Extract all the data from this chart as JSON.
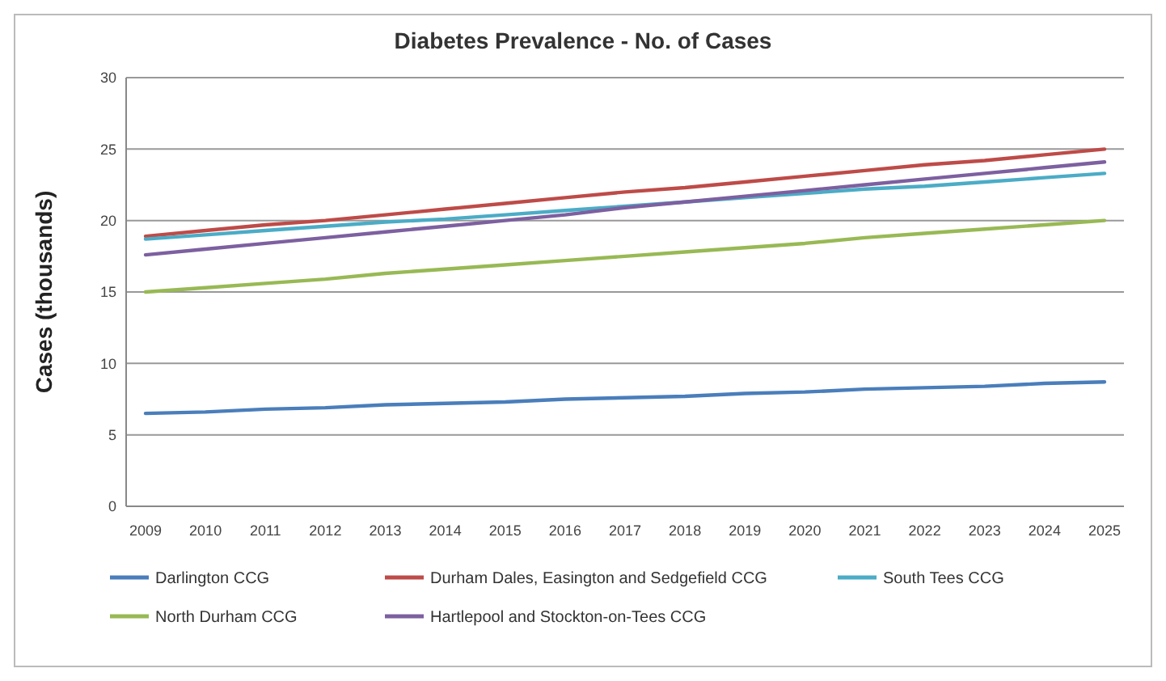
{
  "chart_data": {
    "type": "line",
    "title": "Diabetes Prevalence - No. of Cases",
    "ylabel": "Cases (thousands)",
    "categories": [
      "2009",
      "2010",
      "2011",
      "2012",
      "2013",
      "2014",
      "2015",
      "2016",
      "2017",
      "2018",
      "2019",
      "2020",
      "2021",
      "2022",
      "2023",
      "2024",
      "2025"
    ],
    "series": [
      {
        "name": "Darlington CCG",
        "color": "#4a7ebb",
        "values": [
          6.5,
          6.6,
          6.8,
          6.9,
          7.1,
          7.2,
          7.3,
          7.5,
          7.6,
          7.7,
          7.9,
          8.0,
          8.2,
          8.3,
          8.4,
          8.6,
          8.7
        ]
      },
      {
        "name": "Durham Dales, Easington and Sedgefield CCG",
        "color": "#be4b48",
        "values": [
          18.9,
          19.3,
          19.7,
          20.0,
          20.4,
          20.8,
          21.2,
          21.6,
          22.0,
          22.3,
          22.7,
          23.1,
          23.5,
          23.9,
          24.2,
          24.6,
          25.0
        ]
      },
      {
        "name": "South Tees CCG",
        "color": "#4bacc6",
        "values": [
          18.7,
          19.0,
          19.3,
          19.6,
          19.9,
          20.1,
          20.4,
          20.7,
          21.0,
          21.3,
          21.6,
          21.9,
          22.2,
          22.4,
          22.7,
          23.0,
          23.3
        ]
      },
      {
        "name": "North Durham CCG",
        "color": "#98b954",
        "values": [
          15.0,
          15.3,
          15.6,
          15.9,
          16.3,
          16.6,
          16.9,
          17.2,
          17.5,
          17.8,
          18.1,
          18.4,
          18.8,
          19.1,
          19.4,
          19.7,
          20.0
        ]
      },
      {
        "name": "Hartlepool and Stockton-on-Tees CCG",
        "color": "#7d60a0",
        "values": [
          17.6,
          18.0,
          18.4,
          18.8,
          19.2,
          19.6,
          20.0,
          20.4,
          20.9,
          21.3,
          21.7,
          22.1,
          22.5,
          22.9,
          23.3,
          23.7,
          24.1
        ]
      }
    ],
    "ylim": [
      0,
      30
    ],
    "yticks": [
      0,
      5,
      10,
      15,
      20,
      25,
      30
    ],
    "grid": "y",
    "legend": "bottom",
    "marker": "none",
    "line_style": "solid"
  }
}
